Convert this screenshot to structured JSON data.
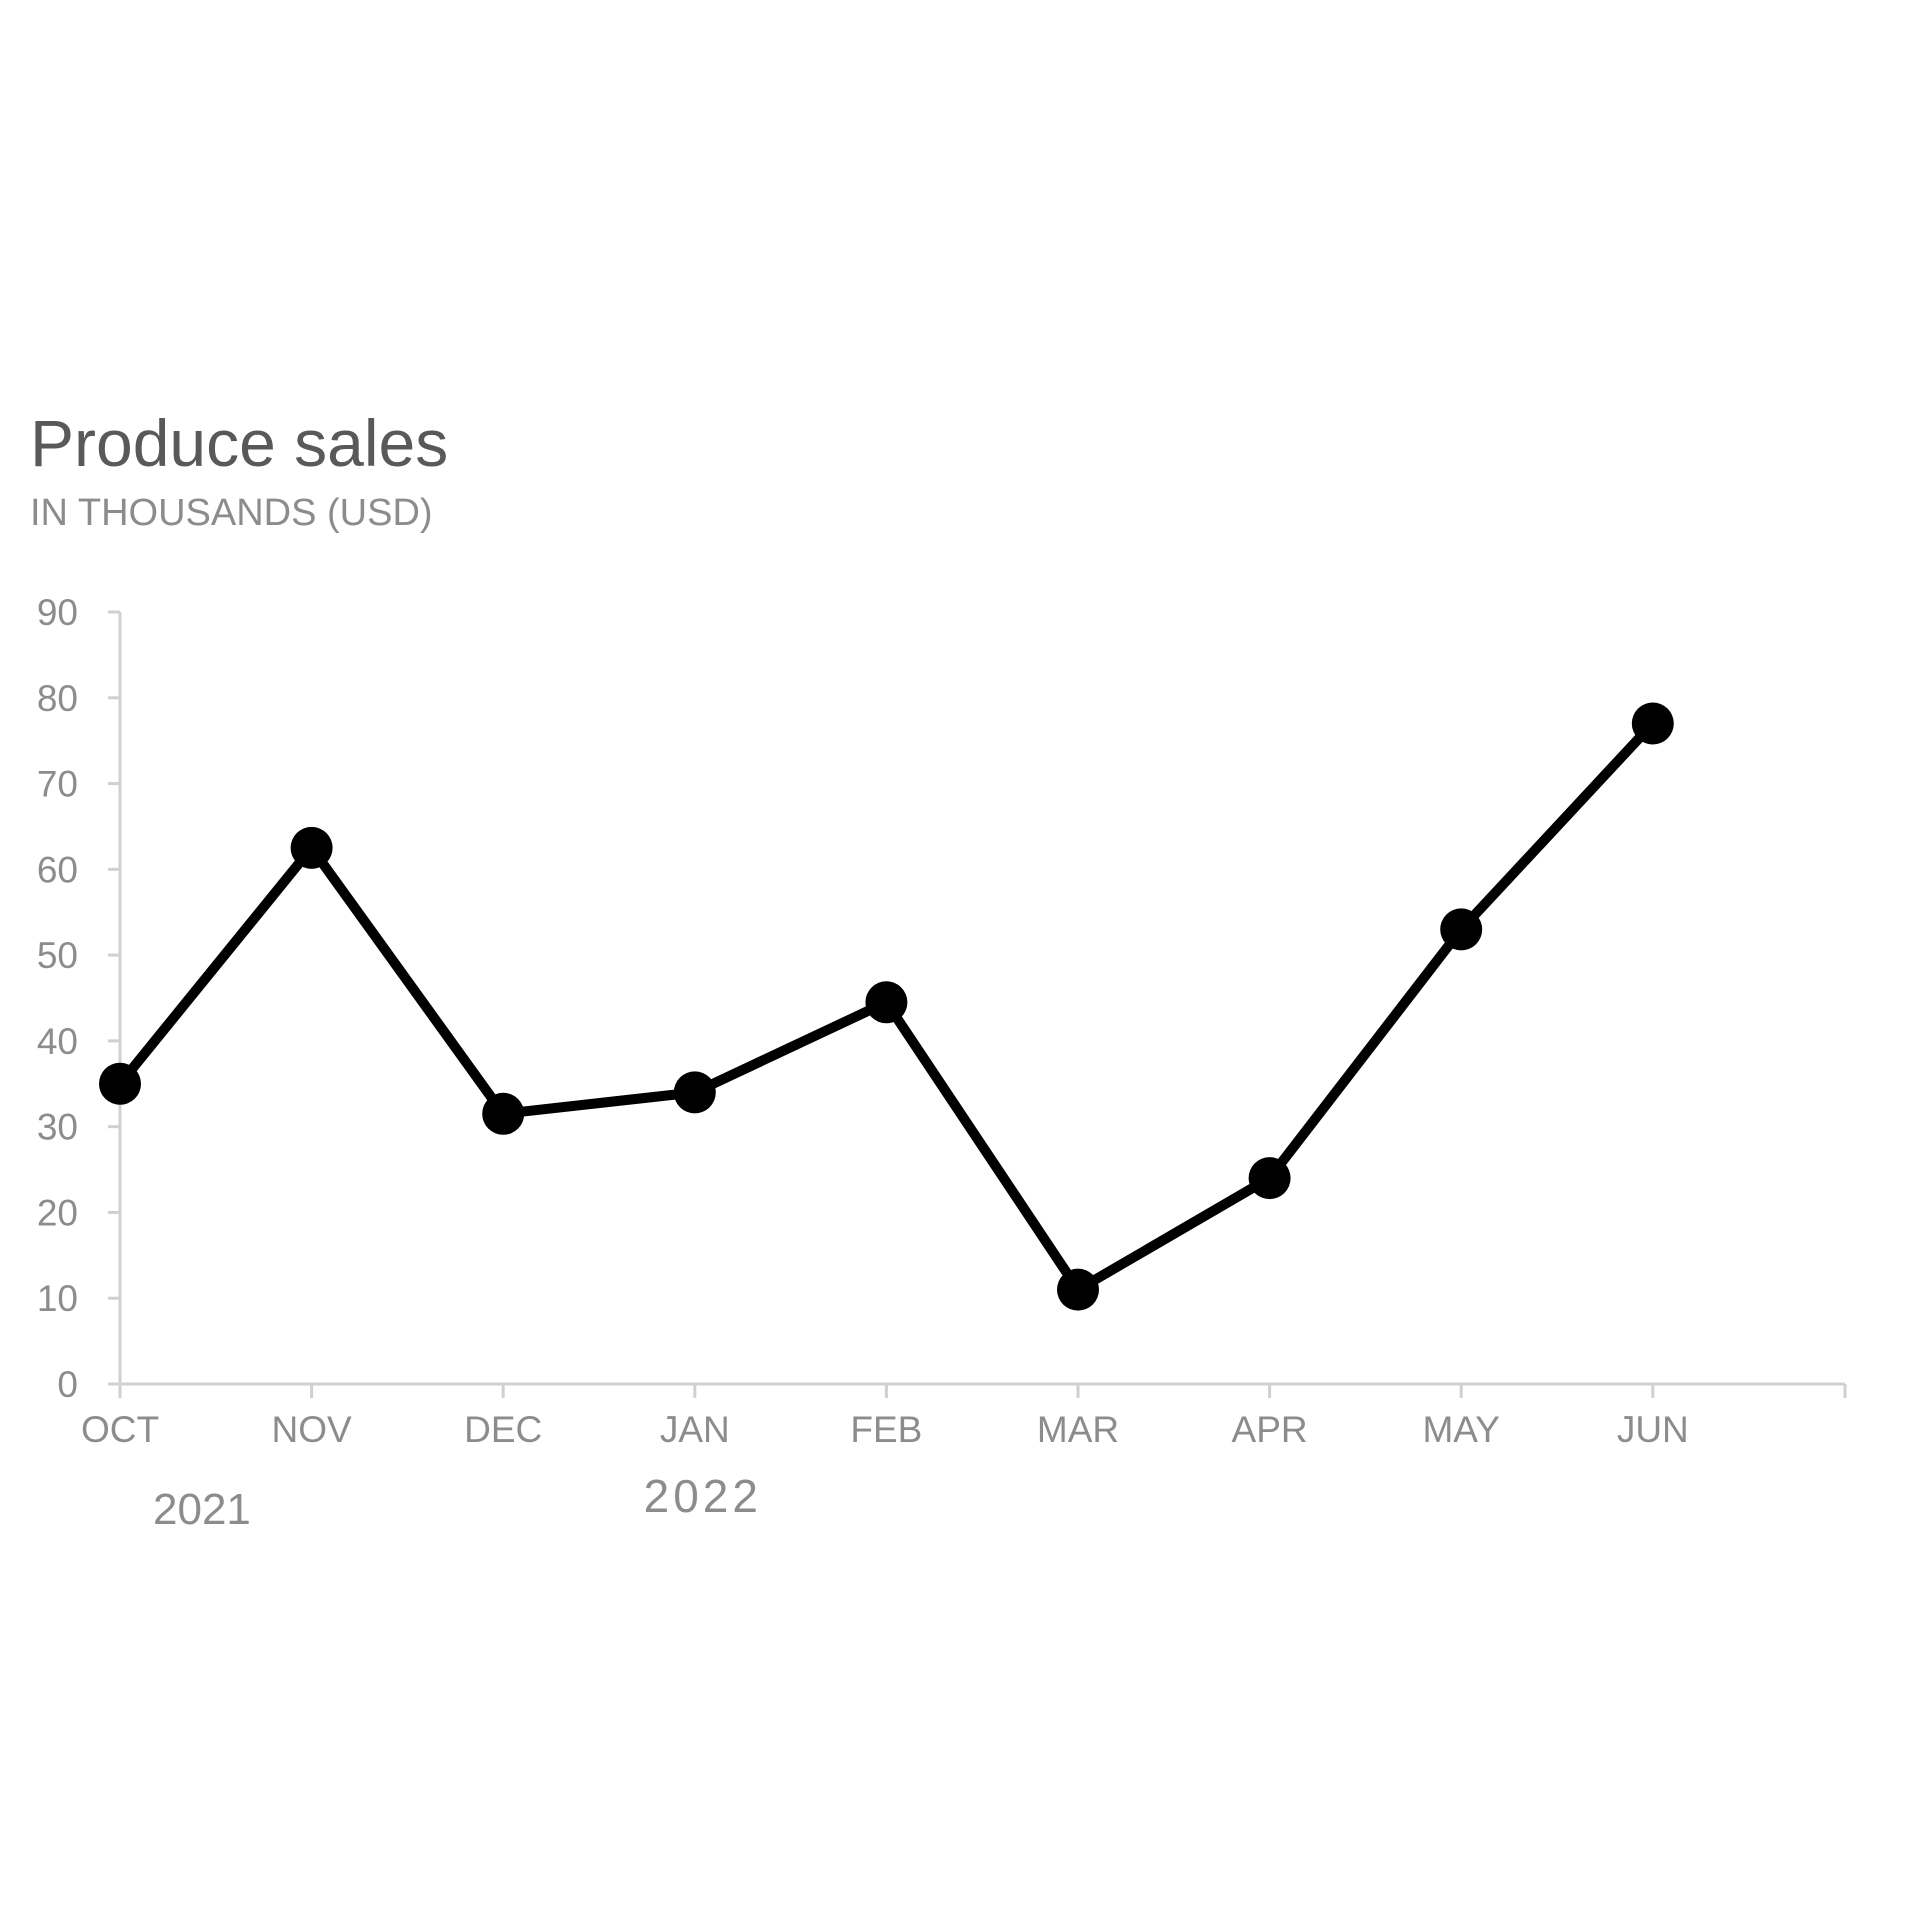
{
  "chart_data": {
    "type": "line",
    "title": "Produce sales",
    "subtitle": "IN THOUSANDS (USD)",
    "xlabel": "",
    "ylabel": "",
    "categories": [
      "OCT",
      "NOV",
      "DEC",
      "JAN",
      "FEB",
      "MAR",
      "APR",
      "MAY",
      "JUN"
    ],
    "year_labels": [
      {
        "label": "2021",
        "start_category": "OCT"
      },
      {
        "label": "2022",
        "start_category": "JAN"
      }
    ],
    "series": [
      {
        "name": "Produce sales",
        "values": [
          35,
          62.5,
          31.5,
          34,
          44.5,
          11,
          24,
          53,
          77
        ]
      }
    ],
    "ylim": [
      0,
      90
    ],
    "yticks": [
      0,
      10,
      20,
      30,
      40,
      50,
      60,
      70,
      80,
      90
    ],
    "grid": false,
    "legend": "none",
    "colors": {
      "line": "#000000",
      "marker": "#000000",
      "axis": "#d0d0d0",
      "tick_text": "#8c8c8c",
      "title": "#595959",
      "subtitle": "#8c8c8c"
    }
  }
}
